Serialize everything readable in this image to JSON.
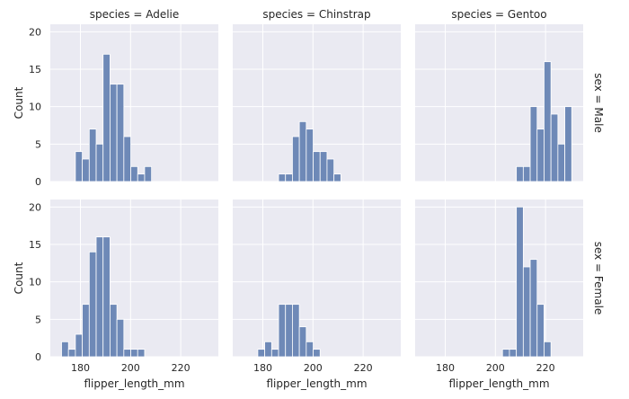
{
  "chart_data": {
    "type": "bar",
    "subtype": "faceted-histogram",
    "bin_width": 2.76,
    "bar_color": "#6e89b7",
    "bar_edge_color": "#ffffff",
    "panel_background": "#eaeaf2",
    "grid": true,
    "grid_color": "#ffffff",
    "xlim": [
      168,
      235
    ],
    "ylim": [
      0,
      21
    ],
    "xticks": [
      180,
      200,
      220
    ],
    "yticks": [
      0,
      5,
      10,
      15,
      20
    ],
    "xlabel": "flipper_length_mm",
    "ylabel": "Count",
    "columns": [
      "species = Adelie",
      "species = Chinstrap",
      "species = Gentoo"
    ],
    "rows": [
      "sex = Male",
      "sex = Female"
    ],
    "panels": [
      {
        "column": "species = Adelie",
        "row": "sex = Male",
        "bins_start": [
          178.0,
          180.76,
          183.52,
          186.28,
          189.04,
          191.8,
          194.56,
          197.32,
          200.08,
          202.84,
          205.6,
          208.36
        ],
        "values": [
          4,
          3,
          7,
          5,
          17,
          13,
          13,
          6,
          2,
          1,
          2,
          0
        ]
      },
      {
        "column": "species = Chinstrap",
        "row": "sex = Male",
        "bins_start": [
          186.28,
          189.04,
          191.8,
          194.56,
          197.32,
          200.08,
          202.84,
          205.6,
          208.36
        ],
        "values": [
          1,
          1,
          6,
          8,
          7,
          4,
          4,
          3,
          1
        ]
      },
      {
        "column": "species = Gentoo",
        "row": "sex = Male",
        "bins_start": [
          208.36,
          211.12,
          213.88,
          216.64,
          219.4,
          222.16,
          224.92,
          227.68,
          230.44
        ],
        "values": [
          2,
          2,
          10,
          7,
          16,
          9,
          5,
          10,
          0
        ]
      },
      {
        "column": "species = Adelie",
        "row": "sex = Female",
        "bins_start": [
          172.48,
          175.24,
          178.0,
          180.76,
          183.52,
          186.28,
          189.04,
          191.8,
          194.56,
          197.32,
          200.08,
          202.84
        ],
        "values": [
          2,
          1,
          3,
          7,
          14,
          16,
          16,
          7,
          5,
          1,
          1,
          1
        ]
      },
      {
        "column": "species = Chinstrap",
        "row": "sex = Female",
        "bins_start": [
          178.0,
          180.76,
          183.52,
          186.28,
          189.04,
          191.8,
          194.56,
          197.32,
          200.08
        ],
        "values": [
          1,
          2,
          1,
          7,
          7,
          7,
          4,
          2,
          1
        ]
      },
      {
        "column": "species = Gentoo",
        "row": "sex = Female",
        "bins_start": [
          202.84,
          205.6,
          208.36,
          211.12,
          213.88,
          216.64,
          219.4,
          222.16
        ],
        "values": [
          1,
          1,
          20,
          12,
          13,
          7,
          2,
          0
        ]
      }
    ]
  }
}
